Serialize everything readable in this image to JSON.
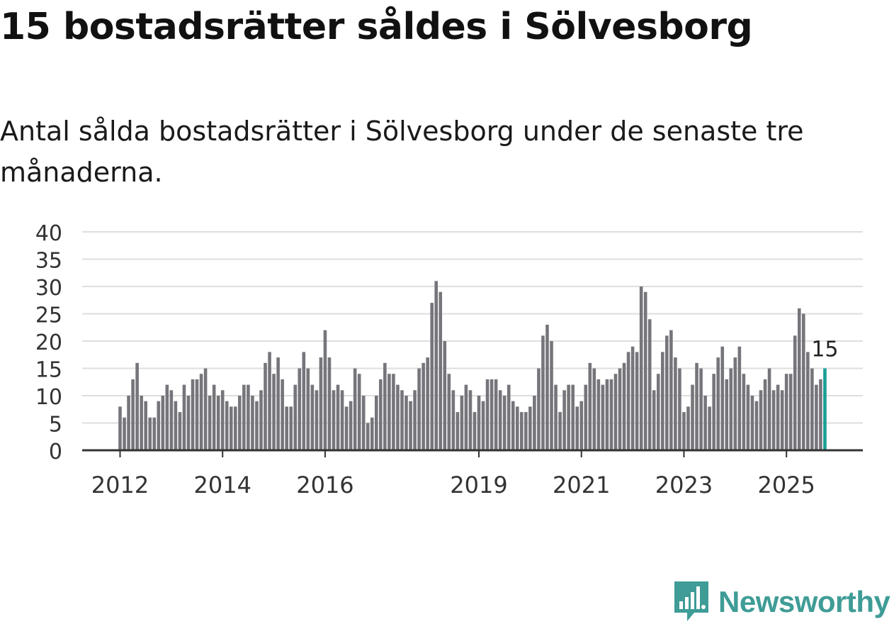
{
  "title": "15 bostadsrätter såldes i Sölvesborg",
  "subtitle": "Antal sålda bostadsrätter i Sölvesborg under de senaste tre månaderna.",
  "brand": {
    "name": "Newsworthy"
  },
  "colors": {
    "bar": "#76757b",
    "highlight": "#1a9e94",
    "grid": "#dedede",
    "axis": "#333333",
    "brand": "#3f9c96"
  },
  "chart_data": {
    "type": "bar",
    "title": "15 bostadsrätter såldes i Sölvesborg",
    "xlabel": "",
    "ylabel": "",
    "ylim": [
      0,
      40
    ],
    "yticks": [
      0,
      5,
      10,
      15,
      20,
      25,
      30,
      35,
      40
    ],
    "grid": true,
    "start": "2012-01",
    "xticks": [
      {
        "label": "2012",
        "index": 0
      },
      {
        "label": "2014",
        "index": 24
      },
      {
        "label": "2016",
        "index": 48
      },
      {
        "label": "2019",
        "index": 84
      },
      {
        "label": "2021",
        "index": 108
      },
      {
        "label": "2023",
        "index": 132
      },
      {
        "label": "2025",
        "index": 156
      }
    ],
    "values": [
      8,
      6,
      10,
      13,
      16,
      10,
      9,
      6,
      6,
      9,
      10,
      12,
      11,
      9,
      7,
      12,
      10,
      13,
      13,
      14,
      15,
      10,
      12,
      10,
      11,
      9,
      8,
      8,
      10,
      12,
      12,
      10,
      9,
      11,
      16,
      18,
      14,
      17,
      13,
      8,
      8,
      12,
      15,
      18,
      15,
      12,
      11,
      17,
      22,
      17,
      11,
      12,
      11,
      8,
      9,
      15,
      14,
      10,
      5,
      6,
      10,
      13,
      16,
      14,
      14,
      12,
      11,
      10,
      9,
      11,
      15,
      16,
      17,
      27,
      31,
      29,
      20,
      14,
      11,
      7,
      10,
      12,
      11,
      7,
      10,
      9,
      13,
      13,
      13,
      11,
      10,
      12,
      9,
      8,
      7,
      7,
      8,
      10,
      15,
      21,
      23,
      20,
      12,
      7,
      11,
      12,
      12,
      8,
      9,
      12,
      16,
      15,
      13,
      12,
      13,
      13,
      14,
      15,
      16,
      18,
      19,
      18,
      30,
      29,
      24,
      11,
      14,
      18,
      21,
      22,
      17,
      15,
      7,
      8,
      12,
      16,
      15,
      10,
      8,
      14,
      17,
      19,
      13,
      15,
      17,
      19,
      14,
      12,
      10,
      9,
      11,
      13,
      15,
      11,
      12,
      11,
      14,
      14,
      21,
      26,
      25,
      18,
      15,
      12,
      13,
      15
    ],
    "highlight": {
      "index": 165,
      "label": "15"
    }
  }
}
